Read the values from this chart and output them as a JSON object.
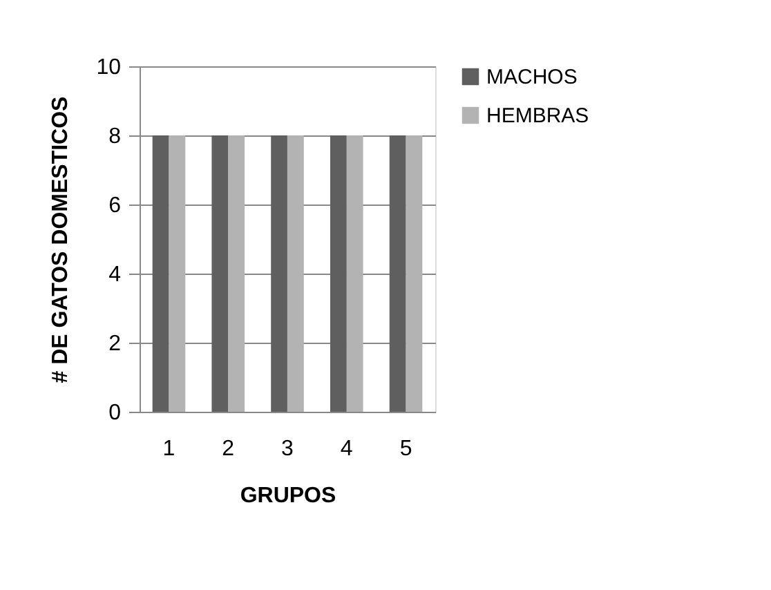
{
  "chart_data": {
    "type": "bar",
    "categories": [
      "1",
      "2",
      "3",
      "4",
      "5"
    ],
    "series": [
      {
        "name": "MACHOS",
        "color": "#5f5f5f",
        "values": [
          8,
          8,
          8,
          8,
          8
        ]
      },
      {
        "name": "HEMBRAS",
        "color": "#b3b3b3",
        "values": [
          8,
          8,
          8,
          8,
          8
        ]
      }
    ],
    "xlabel": "GRUPOS",
    "ylabel": "# DE GATOS DOMESTICOS",
    "ylim": [
      0,
      10
    ],
    "yticks": [
      0,
      2,
      4,
      6,
      8,
      10
    ],
    "grid": "y",
    "legend": "right"
  }
}
